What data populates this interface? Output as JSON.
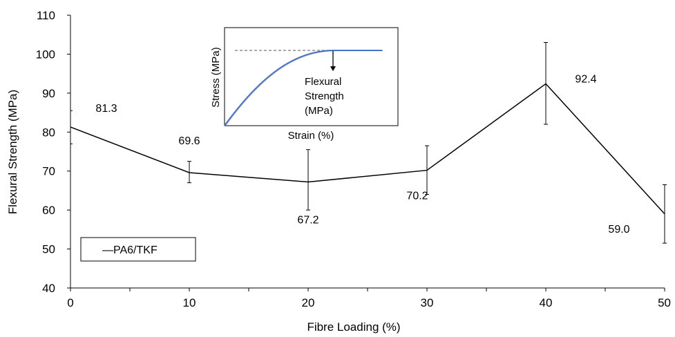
{
  "chart_data": {
    "type": "line",
    "xlabel": "Fibre Loading (%)",
    "ylabel": "Flexural Strength (MPa)",
    "xlim": [
      0,
      50
    ],
    "ylim": [
      40,
      110
    ],
    "x_ticks": [
      "0",
      "10",
      "20",
      "30",
      "40",
      "50"
    ],
    "y_ticks": [
      "40",
      "50",
      "60",
      "70",
      "80",
      "90",
      "100",
      "110"
    ],
    "grid": false,
    "legend_position": "bottom-left",
    "series": [
      {
        "name": "PA6/TKF",
        "color": "#000000",
        "x": [
          0,
          10,
          20,
          30,
          40,
          50
        ],
        "y": [
          81.3,
          69.6,
          67.2,
          70.2,
          92.4,
          59.0
        ],
        "error_low": [
          77.0,
          67.0,
          60.0,
          64.0,
          82.0,
          51.5
        ],
        "error_high": [
          85.5,
          72.5,
          75.5,
          76.5,
          103.0,
          66.5
        ],
        "data_labels": [
          "81.3",
          "69.6",
          "67.2",
          "70.2",
          "92.4",
          "59.0"
        ]
      }
    ]
  },
  "legend": {
    "label": "PA6/TKF",
    "marker": "—"
  },
  "inset": {
    "xlabel": "Strain (%)",
    "ylabel": "Stress (MPa)",
    "annotation": [
      "Flexural",
      "Strength",
      "(MPa)"
    ],
    "curve_color": "#4472c4",
    "dashed_color": "#777777"
  }
}
